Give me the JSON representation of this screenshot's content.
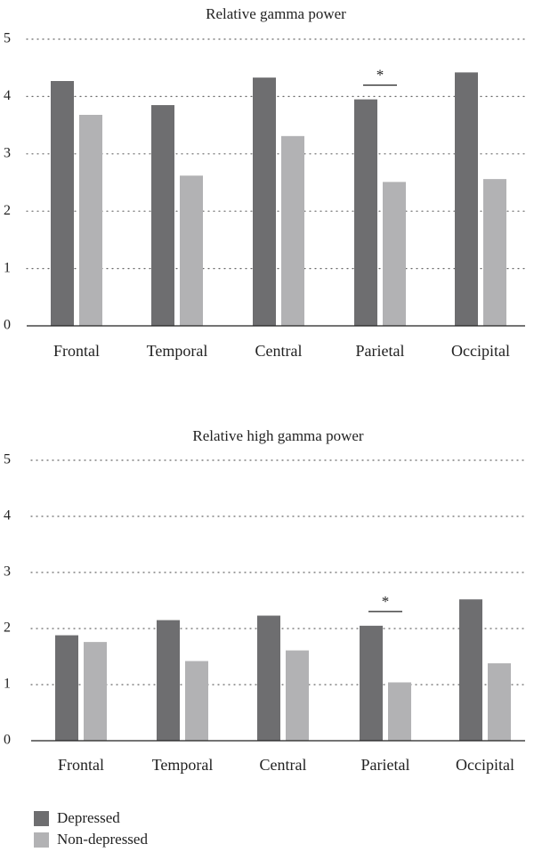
{
  "colors": {
    "depressed": "#6e6e70",
    "non_depressed": "#b2b2b4",
    "grid": "#666666",
    "axis": "#222222"
  },
  "legend": [
    {
      "label": "Depressed",
      "color": "#6e6e70"
    },
    {
      "label": "Non-depressed",
      "color": "#b2b2b4"
    }
  ],
  "chart_data": [
    {
      "type": "bar",
      "title": "Relative gamma power",
      "categories": [
        "Frontal",
        "Temporal",
        "Central",
        "Parietal",
        "Occipital"
      ],
      "series": [
        {
          "name": "Depressed",
          "values": [
            4.27,
            3.85,
            4.33,
            3.95,
            4.42
          ]
        },
        {
          "name": "Non-depressed",
          "values": [
            3.68,
            2.62,
            3.31,
            2.51,
            2.56
          ]
        }
      ],
      "ylim": [
        0,
        5
      ],
      "yticks": [
        0,
        1,
        2,
        3,
        4,
        5
      ],
      "grid": true,
      "significance": [
        {
          "category": "Parietal",
          "label": "*"
        }
      ]
    },
    {
      "type": "bar",
      "title": "Relative high gamma power",
      "categories": [
        "Frontal",
        "Temporal",
        "Central",
        "Parietal",
        "Occipital"
      ],
      "series": [
        {
          "name": "Depressed",
          "values": [
            1.88,
            2.15,
            2.23,
            2.05,
            2.52
          ]
        },
        {
          "name": "Non-depressed",
          "values": [
            1.76,
            1.42,
            1.61,
            1.04,
            1.38
          ]
        }
      ],
      "ylim": [
        0,
        5
      ],
      "yticks": [
        0,
        1,
        2,
        3,
        4,
        5
      ],
      "grid": true,
      "significance": [
        {
          "category": "Parietal",
          "label": "*"
        }
      ]
    }
  ]
}
